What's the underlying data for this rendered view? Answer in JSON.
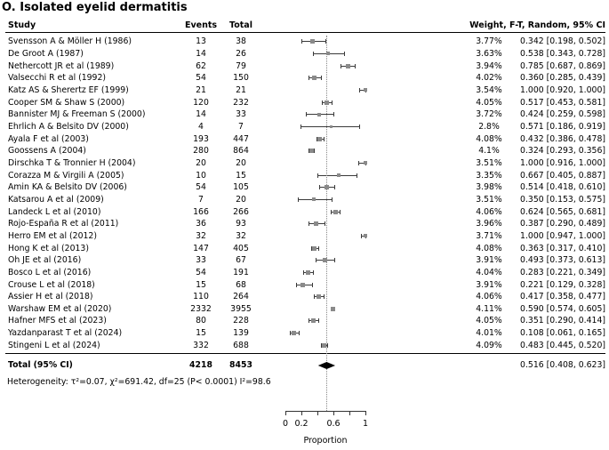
{
  "title": "O. Isolated eyelid dermatitis",
  "columns": {
    "study": "Study",
    "events": "Events",
    "total": "Total",
    "weight_ci": "Weight, F-T, Random, 95% CI"
  },
  "chart_data": {
    "type": "forest",
    "effect_measure": "Proportion",
    "model": "F-T, Random, 95% CI",
    "x_axis": {
      "label": "Proportion",
      "range": [
        0,
        1
      ],
      "ticks": [
        0,
        0.2,
        0.4,
        0.6,
        0.8,
        1
      ],
      "tick_labels": [
        "0",
        "0.2",
        "",
        "0.6",
        "",
        "1"
      ],
      "reference_line": 0.516
    },
    "studies": [
      {
        "study": "Svensson A & Möller H (1986)",
        "events": "13",
        "total": "38",
        "weight": "3.77%",
        "estimate": 0.342,
        "ci_low": 0.198,
        "ci_high": 0.502,
        "ci_text": "0.342 [0.198, 0.502]"
      },
      {
        "study": "De Groot A (1987)",
        "events": "14",
        "total": "26",
        "weight": "3.63%",
        "estimate": 0.538,
        "ci_low": 0.343,
        "ci_high": 0.728,
        "ci_text": "0.538 [0.343, 0.728]"
      },
      {
        "study": "Nethercott JR et al (1989)",
        "events": "62",
        "total": "79",
        "weight": "3.94%",
        "estimate": 0.785,
        "ci_low": 0.687,
        "ci_high": 0.869,
        "ci_text": "0.785 [0.687, 0.869]"
      },
      {
        "study": "Valsecchi R et al (1992)",
        "events": "54",
        "total": "150",
        "weight": "4.02%",
        "estimate": 0.36,
        "ci_low": 0.285,
        "ci_high": 0.439,
        "ci_text": "0.360 [0.285, 0.439]"
      },
      {
        "study": "Katz AS & Sherertz EF (1999)",
        "events": "21",
        "total": "21",
        "weight": "3.54%",
        "estimate": 1.0,
        "ci_low": 0.92,
        "ci_high": 1.0,
        "ci_text": "1.000 [0.920, 1.000]"
      },
      {
        "study": "Cooper SM & Shaw S (2000)",
        "events": "120",
        "total": "232",
        "weight": "4.05%",
        "estimate": 0.517,
        "ci_low": 0.453,
        "ci_high": 0.581,
        "ci_text": "0.517 [0.453, 0.581]"
      },
      {
        "study": "Bannister MJ & Freeman S (2000)",
        "events": "14",
        "total": "33",
        "weight": "3.72%",
        "estimate": 0.424,
        "ci_low": 0.259,
        "ci_high": 0.598,
        "ci_text": "0.424 [0.259, 0.598]"
      },
      {
        "study": "Ehrlich A & Belsito DV (2000)",
        "events": "4",
        "total": "7",
        "weight": "2.8%",
        "estimate": 0.571,
        "ci_low": 0.186,
        "ci_high": 0.919,
        "ci_text": "0.571 [0.186, 0.919]"
      },
      {
        "study": "Ayala F et al (2003)",
        "events": "193",
        "total": "447",
        "weight": "4.08%",
        "estimate": 0.432,
        "ci_low": 0.386,
        "ci_high": 0.478,
        "ci_text": "0.432 [0.386, 0.478]"
      },
      {
        "study": "Goossens A (2004)",
        "events": "280",
        "total": "864",
        "weight": "4.1%",
        "estimate": 0.324,
        "ci_low": 0.293,
        "ci_high": 0.356,
        "ci_text": "0.324 [0.293, 0.356]"
      },
      {
        "study": "Dirschka T & Tronnier H (2004)",
        "events": "20",
        "total": "20",
        "weight": "3.51%",
        "estimate": 1.0,
        "ci_low": 0.916,
        "ci_high": 1.0,
        "ci_text": "1.000 [0.916, 1.000]"
      },
      {
        "study": "Corazza M & Virgili A (2005)",
        "events": "10",
        "total": "15",
        "weight": "3.35%",
        "estimate": 0.667,
        "ci_low": 0.405,
        "ci_high": 0.887,
        "ci_text": "0.667 [0.405, 0.887]"
      },
      {
        "study": "Amin KA & Belsito DV (2006)",
        "events": "54",
        "total": "105",
        "weight": "3.98%",
        "estimate": 0.514,
        "ci_low": 0.418,
        "ci_high": 0.61,
        "ci_text": "0.514 [0.418, 0.610]"
      },
      {
        "study": "Katsarou A et al (2009)",
        "events": "7",
        "total": "20",
        "weight": "3.51%",
        "estimate": 0.35,
        "ci_low": 0.153,
        "ci_high": 0.575,
        "ci_text": "0.350 [0.153, 0.575]"
      },
      {
        "study": "Landeck L et al (2010)",
        "events": "166",
        "total": "266",
        "weight": "4.06%",
        "estimate": 0.624,
        "ci_low": 0.565,
        "ci_high": 0.681,
        "ci_text": "0.624 [0.565, 0.681]"
      },
      {
        "study": "Rojo-España R et al (2011)",
        "events": "36",
        "total": "93",
        "weight": "3.96%",
        "estimate": 0.387,
        "ci_low": 0.29,
        "ci_high": 0.489,
        "ci_text": "0.387 [0.290, 0.489]"
      },
      {
        "study": "Herro EM et al (2012)",
        "events": "32",
        "total": "32",
        "weight": "3.71%",
        "estimate": 1.0,
        "ci_low": 0.947,
        "ci_high": 1.0,
        "ci_text": "1.000 [0.947, 1.000]"
      },
      {
        "study": "Hong K et al (2013)",
        "events": "147",
        "total": "405",
        "weight": "4.08%",
        "estimate": 0.363,
        "ci_low": 0.317,
        "ci_high": 0.41,
        "ci_text": "0.363 [0.317, 0.410]"
      },
      {
        "study": "Oh JE et al (2016)",
        "events": "33",
        "total": "67",
        "weight": "3.91%",
        "estimate": 0.493,
        "ci_low": 0.373,
        "ci_high": 0.613,
        "ci_text": "0.493 [0.373, 0.613]"
      },
      {
        "study": "Bosco L et al (2016)",
        "events": "54",
        "total": "191",
        "weight": "4.04%",
        "estimate": 0.283,
        "ci_low": 0.221,
        "ci_high": 0.349,
        "ci_text": "0.283 [0.221, 0.349]"
      },
      {
        "study": "Crouse L et al (2018)",
        "events": "15",
        "total": "68",
        "weight": "3.91%",
        "estimate": 0.221,
        "ci_low": 0.129,
        "ci_high": 0.328,
        "ci_text": "0.221 [0.129, 0.328]"
      },
      {
        "study": "Assier H et al (2018)",
        "events": "110",
        "total": "264",
        "weight": "4.06%",
        "estimate": 0.417,
        "ci_low": 0.358,
        "ci_high": 0.477,
        "ci_text": "0.417 [0.358, 0.477]"
      },
      {
        "study": "Warshaw EM et al (2020)",
        "events": "2332",
        "total": "3955",
        "weight": "4.11%",
        "estimate": 0.59,
        "ci_low": 0.574,
        "ci_high": 0.605,
        "ci_text": "0.590 [0.574, 0.605]"
      },
      {
        "study": "Hafner MFS et al (2023)",
        "events": "80",
        "total": "228",
        "weight": "4.05%",
        "estimate": 0.351,
        "ci_low": 0.29,
        "ci_high": 0.414,
        "ci_text": "0.351 [0.290, 0.414]"
      },
      {
        "study": "Yazdanparast T et al (2024)",
        "events": "15",
        "total": "139",
        "weight": "4.01%",
        "estimate": 0.108,
        "ci_low": 0.061,
        "ci_high": 0.165,
        "ci_text": "0.108 [0.061, 0.165]"
      },
      {
        "study": "Stingeni L et al (2024)",
        "events": "332",
        "total": "688",
        "weight": "4.09%",
        "estimate": 0.483,
        "ci_low": 0.445,
        "ci_high": 0.52,
        "ci_text": "0.483 [0.445, 0.520]"
      }
    ],
    "total": {
      "label": "Total (95% CI)",
      "events": "4218",
      "total": "8453",
      "estimate": 0.516,
      "ci_low": 0.408,
      "ci_high": 0.623,
      "ci_text": "0.516 [0.408, 0.623]"
    },
    "heterogeneity": "Heterogeneity: τ²=0.07, χ²=691.42, df=25 (P< 0.0001) I²=98.6"
  }
}
